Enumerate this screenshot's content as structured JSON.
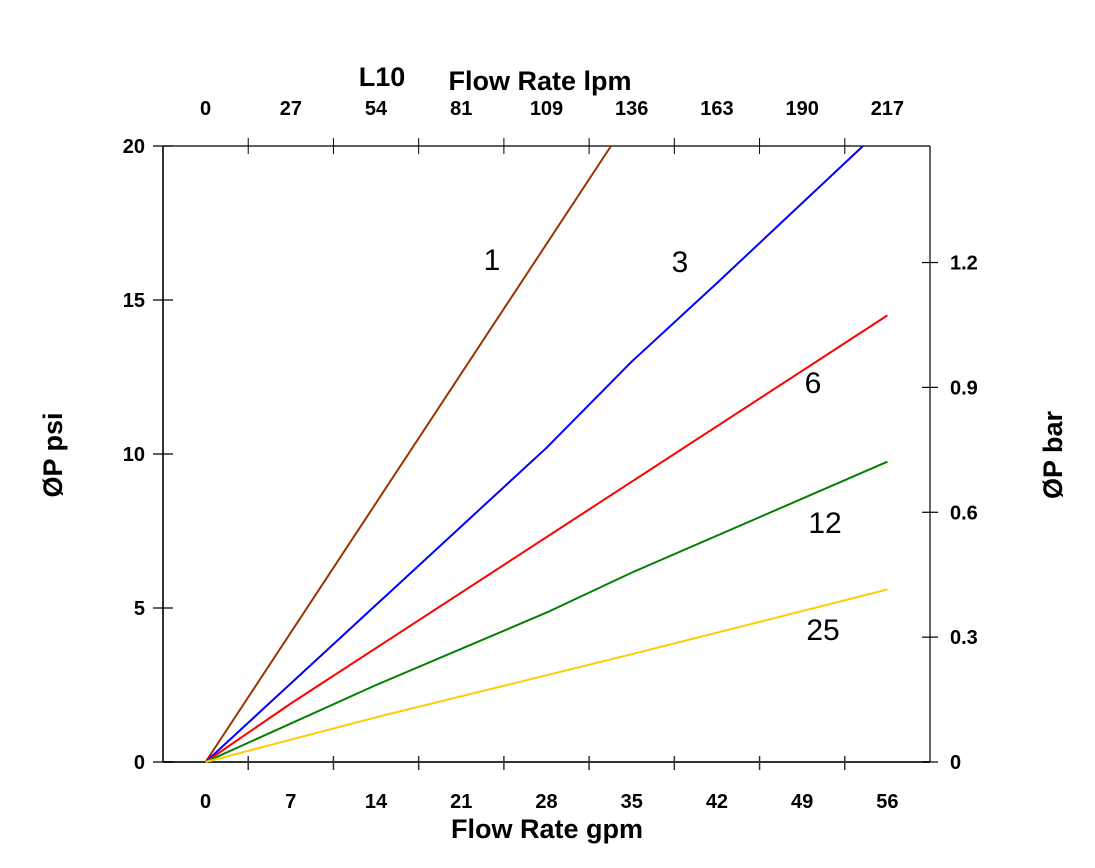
{
  "chart_data": {
    "type": "line",
    "title": "L10",
    "xlabel": "Flow Rate gpm",
    "x2label": "Flow Rate lpm",
    "ylabel": "ØP psi",
    "y2label": "ØP bar",
    "xlim": [
      -3.5,
      59.5
    ],
    "ylim": [
      0,
      20
    ],
    "y2lim": [
      0,
      1.48
    ],
    "x_ticks": [
      "0",
      "7",
      "14",
      "21",
      "28",
      "35",
      "42",
      "49",
      "56"
    ],
    "x2_ticks": [
      "0",
      "27",
      "54",
      "81",
      "109",
      "136",
      "163",
      "190",
      "217"
    ],
    "y_ticks": [
      "0",
      "5",
      "10",
      "15",
      "20"
    ],
    "y2_ticks": [
      "0",
      "0.3",
      "0.6",
      "0.9",
      "1.2"
    ],
    "grid": false,
    "legend": "none (inline labels)",
    "series": [
      {
        "name": "1",
        "color": "#993300",
        "points": [
          [
            0,
            0
          ],
          [
            33.3,
            20
          ]
        ]
      },
      {
        "name": "3",
        "color": "#0000ff",
        "points": [
          [
            0,
            0
          ],
          [
            28,
            10.2
          ],
          [
            35,
            13
          ],
          [
            42,
            15.55
          ],
          [
            54,
            20
          ]
        ]
      },
      {
        "name": "6",
        "color": "#ff0000",
        "points": [
          [
            0,
            0
          ],
          [
            7,
            1.9
          ],
          [
            35,
            9.1
          ],
          [
            56,
            14.5
          ]
        ]
      },
      {
        "name": "12",
        "color": "#008000",
        "points": [
          [
            0,
            0
          ],
          [
            14,
            2.5
          ],
          [
            28,
            4.85
          ],
          [
            35,
            6.15
          ],
          [
            56,
            9.75
          ]
        ]
      },
      {
        "name": "25",
        "color": "#ffcc00",
        "points": [
          [
            0,
            0
          ],
          [
            14,
            1.45
          ],
          [
            35,
            3.5
          ],
          [
            56,
            5.6
          ]
        ]
      }
    ]
  }
}
